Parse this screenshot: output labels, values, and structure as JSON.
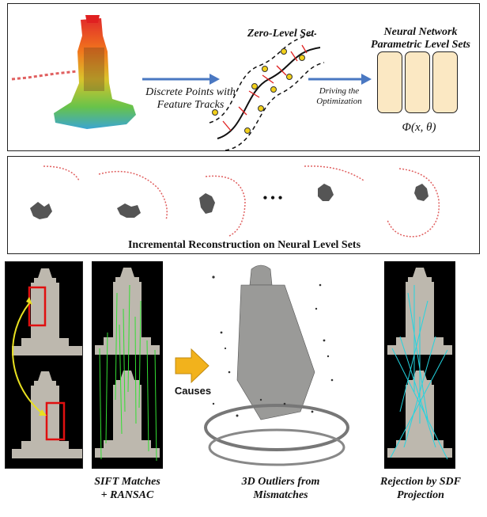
{
  "top_panel": {
    "zero_level_set": "Zero-Level Set",
    "discrete_points_line1": "Discrete Points with",
    "discrete_points_line2": "Feature Tracks",
    "driving_line1": "Driving the",
    "driving_line2": "Optimization",
    "nn_title_line1": "Neural Network",
    "nn_title_line2": "Parametric Level Sets",
    "phi_label": "Φ(x, θ)"
  },
  "middle_panel": {
    "ellipsis": "• • •",
    "caption": "Incremental Reconstruction on Neural Level Sets"
  },
  "bottom": {
    "causes_label": "Causes",
    "sift_line1": "SIFT Matches",
    "sift_line2": "+ RANSAC",
    "outliers_line1": "3D Outliers from",
    "outliers_line2": "Mismatches",
    "rejection_line1": "Rejection by SDF",
    "rejection_line2": "Projection"
  },
  "colors": {
    "arrow_blue": "#4a78c2",
    "nn_box_fill": "#fbe8c3",
    "camera_red": "#e06060",
    "match_green": "#33dd33",
    "match_cyan": "#22d4e0",
    "causes_arrow": "#f2b21c",
    "highlight_red": "#e01010",
    "curve_arrow": "#e8e020"
  }
}
